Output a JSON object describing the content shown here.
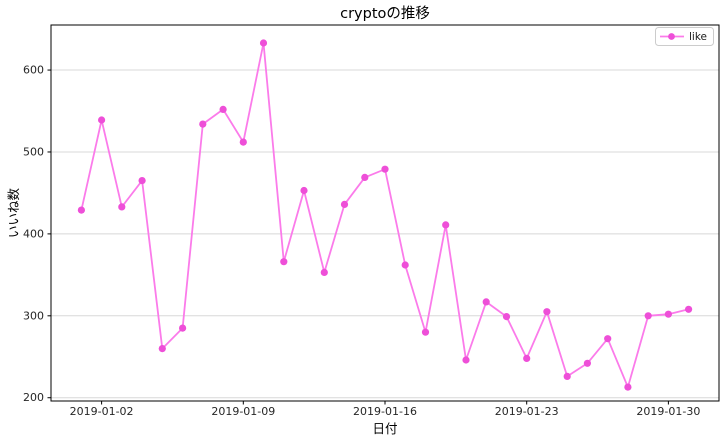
{
  "chart_data": {
    "type": "line",
    "title": "cryptoの推移",
    "xlabel": "日付",
    "ylabel": "いいね数",
    "x": [
      "2019-01-01",
      "2019-01-02",
      "2019-01-03",
      "2019-01-04",
      "2019-01-05",
      "2019-01-06",
      "2019-01-07",
      "2019-01-08",
      "2019-01-09",
      "2019-01-10",
      "2019-01-11",
      "2019-01-12",
      "2019-01-13",
      "2019-01-14",
      "2019-01-15",
      "2019-01-16",
      "2019-01-17",
      "2019-01-18",
      "2019-01-19",
      "2019-01-20",
      "2019-01-21",
      "2019-01-22",
      "2019-01-23",
      "2019-01-24",
      "2019-01-25",
      "2019-01-26",
      "2019-01-27",
      "2019-01-28",
      "2019-01-29",
      "2019-01-30",
      "2019-01-31"
    ],
    "series": [
      {
        "name": "like",
        "values": [
          429,
          539,
          433,
          465,
          260,
          285,
          534,
          552,
          512,
          633,
          366,
          453,
          353,
          436,
          469,
          479,
          362,
          280,
          411,
          246,
          317,
          299,
          248,
          305,
          226,
          242,
          272,
          213,
          300,
          302,
          308
        ]
      }
    ],
    "xticks": [
      "2019-01-02",
      "2019-01-09",
      "2019-01-16",
      "2019-01-23",
      "2019-01-30"
    ],
    "yticks": [
      200,
      300,
      400,
      500,
      600
    ],
    "ylim": [
      196,
      655
    ],
    "legend_position": "upper right",
    "grid": "horizontal",
    "colors": {
      "line": "#fb7bea",
      "marker": "#ee4fd8",
      "gridline": "#d8d8d8",
      "spine": "#000000",
      "legend_border": "#cccccc",
      "background": "#ffffff"
    }
  }
}
